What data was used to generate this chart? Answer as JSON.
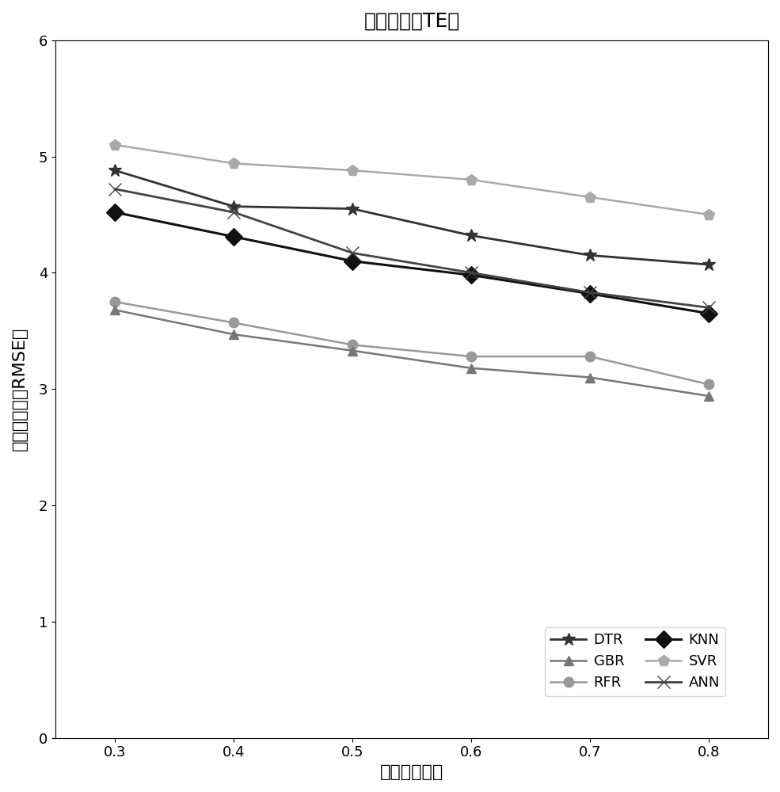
{
  "title": "总延伸率（TE）",
  "xlabel": "训练集的比例",
  "ylabel": "测试集的平均RMSE值",
  "x": [
    0.3,
    0.4,
    0.5,
    0.6,
    0.7,
    0.8
  ],
  "series": {
    "DTR": {
      "y": [
        4.88,
        4.57,
        4.55,
        4.32,
        4.15,
        4.07
      ],
      "color": "#333333",
      "marker": "*",
      "markersize": 12,
      "linewidth": 2.0,
      "linestyle": "-"
    },
    "RFR": {
      "y": [
        3.75,
        3.57,
        3.38,
        3.28,
        3.28,
        3.04
      ],
      "color": "#999999",
      "marker": "o",
      "markersize": 9,
      "linewidth": 1.8,
      "linestyle": "-"
    },
    "SVR": {
      "y": [
        5.1,
        4.94,
        4.88,
        4.8,
        4.65,
        4.5
      ],
      "color": "#aaaaaa",
      "marker": "p",
      "markersize": 10,
      "linewidth": 1.8,
      "linestyle": "-"
    },
    "GBR": {
      "y": [
        3.68,
        3.47,
        3.33,
        3.18,
        3.1,
        2.94
      ],
      "color": "#777777",
      "marker": "^",
      "markersize": 9,
      "linewidth": 1.8,
      "linestyle": "-"
    },
    "KNN": {
      "y": [
        4.52,
        4.31,
        4.1,
        3.98,
        3.82,
        3.65
      ],
      "color": "#111111",
      "marker": "D",
      "markersize": 11,
      "linewidth": 2.2,
      "linestyle": "-"
    },
    "ANN": {
      "y": [
        4.72,
        4.52,
        4.17,
        4.0,
        3.83,
        3.7
      ],
      "color": "#444444",
      "marker": "x",
      "markersize": 11,
      "linewidth": 2.0,
      "linestyle": "-"
    }
  },
  "xlim": [
    0.25,
    0.85
  ],
  "ylim": [
    0,
    6
  ],
  "xticks": [
    0.3,
    0.4,
    0.5,
    0.6,
    0.7,
    0.8
  ],
  "yticks": [
    0,
    1,
    2,
    3,
    4,
    5,
    6
  ],
  "legend_order": [
    "DTR",
    "GBR",
    "RFR",
    "KNN",
    "SVR",
    "ANN"
  ],
  "figsize": [
    9.85,
    10.0
  ],
  "dpi": 100
}
